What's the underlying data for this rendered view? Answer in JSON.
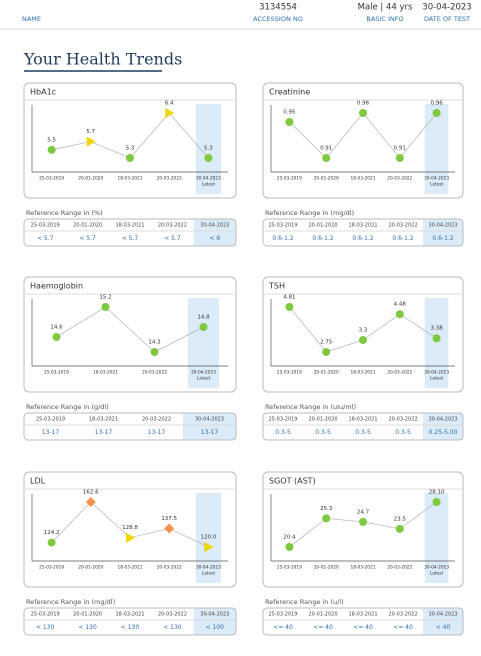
{
  "header": {
    "name_label": "NAME",
    "accession": "3134554",
    "accession_label": "ACCESSION NO",
    "basic_info": "Male | 44 yrs",
    "basic_info_label": "BASIC INFO",
    "date": "30-04-2023",
    "date_label": "DATE OF TEST"
  },
  "title": "Your Health Trends",
  "chart_data": [
    {
      "type": "line",
      "title": "HbA1c",
      "categories": [
        "25-03-2019",
        "20-01-2020",
        "18-03-2021",
        "20-03-2022",
        "30-04-2023"
      ],
      "values": [
        5.5,
        5.7,
        5.3,
        6.4,
        5.3
      ],
      "point_colors": [
        "#7dc93f",
        "#f2d600",
        "#7dc93f",
        "#f2d600",
        "#7dc93f"
      ],
      "point_shapes": [
        "circle",
        "triangle",
        "circle",
        "triangle",
        "circle"
      ],
      "latest_label": "Latest"
    },
    {
      "type": "line",
      "title": "Creatinine",
      "categories": [
        "25-03-2019",
        "20-01-2020",
        "18-03-2021",
        "20-03-2022",
        "30-04-2023"
      ],
      "values": [
        0.95,
        0.91,
        0.96,
        0.91,
        0.96
      ],
      "point_colors": [
        "#7dc93f",
        "#7dc93f",
        "#7dc93f",
        "#7dc93f",
        "#7dc93f"
      ],
      "point_shapes": [
        "circle",
        "circle",
        "circle",
        "circle",
        "circle"
      ],
      "latest_label": "Latest"
    },
    {
      "type": "line",
      "title": "Haemoglobin",
      "categories": [
        "25-03-2019",
        "18-03-2021",
        "20-03-2022",
        "30-04-2023"
      ],
      "values": [
        14.6,
        15.2,
        14.3,
        14.8
      ],
      "point_colors": [
        "#7dc93f",
        "#7dc93f",
        "#7dc93f",
        "#7dc93f"
      ],
      "point_shapes": [
        "circle",
        "circle",
        "circle",
        "circle"
      ],
      "latest_label": "Latest"
    },
    {
      "type": "line",
      "title": "TSH",
      "categories": [
        "25-03-2019",
        "20-01-2020",
        "18-03-2021",
        "20-03-2022",
        "30-04-2023"
      ],
      "values": [
        4.81,
        2.75,
        3.3,
        4.48,
        3.38
      ],
      "point_colors": [
        "#7dc93f",
        "#7dc93f",
        "#7dc93f",
        "#7dc93f",
        "#7dc93f"
      ],
      "point_shapes": [
        "circle",
        "circle",
        "circle",
        "circle",
        "circle"
      ],
      "latest_label": "Latest"
    },
    {
      "type": "line",
      "title": "LDL",
      "categories": [
        "25-03-2019",
        "20-01-2020",
        "18-03-2021",
        "20-03-2022",
        "30-04-2023"
      ],
      "values": [
        124.2,
        162.6,
        128.8,
        137.5,
        120.0
      ],
      "value_labels": [
        "124.2",
        "162.6",
        "128.8",
        "137.5",
        "120.0"
      ],
      "point_colors": [
        "#7dc93f",
        "#f2924d",
        "#f2d600",
        "#f2924d",
        "#f2d600"
      ],
      "point_shapes": [
        "circle",
        "diamond",
        "triangle",
        "diamond",
        "triangle"
      ],
      "latest_label": "Latest"
    },
    {
      "type": "line",
      "title": "SGOT (AST)",
      "categories": [
        "25-03-2019",
        "20-01-2020",
        "18-03-2021",
        "20-03-2022",
        "30-04-2023"
      ],
      "values": [
        20.4,
        25.3,
        24.7,
        23.5,
        28.1
      ],
      "value_labels": [
        "20.4",
        "25.3",
        "24.7",
        "23.5",
        "28.10"
      ],
      "point_colors": [
        "#7dc93f",
        "#7dc93f",
        "#7dc93f",
        "#7dc93f",
        "#7dc93f"
      ],
      "point_shapes": [
        "circle",
        "circle",
        "circle",
        "circle",
        "circle"
      ],
      "latest_label": "Latest"
    }
  ],
  "reference_tables": [
    {
      "label": "Reference Range in (%)",
      "dates": [
        "25-03-2019",
        "20-01-2020",
        "18-03-2021",
        "20-03-2022",
        "30-04-2023"
      ],
      "ranges": [
        "< 5.7",
        "< 5.7",
        "< 5.7",
        "< 5.7",
        "< 6"
      ]
    },
    {
      "label": "Reference Range in (mg/dl)",
      "dates": [
        "25-03-2019",
        "20-01-2020",
        "18-03-2021",
        "20-03-2022",
        "30-04-2023"
      ],
      "ranges": [
        "0.6-1.2",
        "0.6-1.2",
        "0.6-1.2",
        "0.6-1.2",
        "0.6-1.2"
      ]
    },
    {
      "label": "Reference Range in (g/dl)",
      "dates": [
        "25-03-2019",
        "18-03-2021",
        "20-03-2022",
        "30-04-2023"
      ],
      "ranges": [
        "13-17",
        "13-17",
        "13-17",
        "13-17"
      ]
    },
    {
      "label": "Reference Range in (uIu/ml)",
      "dates": [
        "25-03-2019",
        "20-01-2020",
        "18-03-2021",
        "20-03-2022",
        "30-04-2023"
      ],
      "ranges": [
        "0.3-5",
        "0.3-5",
        "0.3-5",
        "0.3-5",
        "0.25-5.00"
      ]
    },
    {
      "label": "Reference Range in (mg/dl)",
      "dates": [
        "25-03-2019",
        "20-01-2020",
        "18-03-2021",
        "20-03-2022",
        "30-04-2023"
      ],
      "ranges": [
        "< 130",
        "< 130",
        "< 130",
        "< 130",
        "< 100"
      ]
    },
    {
      "label": "Reference Range in (u/l)",
      "dates": [
        "25-03-2019",
        "20-01-2020",
        "18-03-2021",
        "20-03-2022",
        "30-04-2023"
      ],
      "ranges": [
        "<= 40",
        "<= 40",
        "<= 40",
        "<= 40",
        "< 40"
      ]
    }
  ]
}
